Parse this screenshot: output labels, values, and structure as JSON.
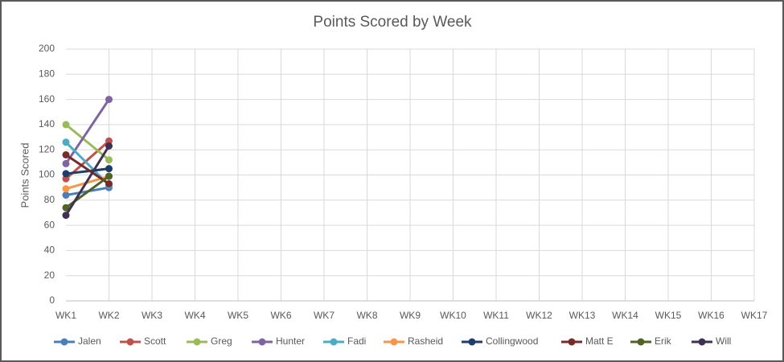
{
  "chart_data": {
    "type": "line",
    "title": "Points Scored by Week",
    "y_label": "Points Scored",
    "categories": [
      "WK1",
      "WK2",
      "WK3",
      "WK4",
      "WK5",
      "WK6",
      "WK7",
      "WK8",
      "WK9",
      "WK10",
      "WK11",
      "WK12",
      "WK13",
      "WK14",
      "WK15",
      "WK16",
      "WK17"
    ],
    "series": [
      {
        "name": "Jalen",
        "color": "#4a7ebb",
        "values": [
          84,
          90,
          null,
          null,
          null,
          null,
          null,
          null,
          null,
          null,
          null,
          null,
          null,
          null,
          null,
          null,
          null
        ]
      },
      {
        "name": "Scott",
        "color": "#c0504d",
        "values": [
          97,
          127,
          null,
          null,
          null,
          null,
          null,
          null,
          null,
          null,
          null,
          null,
          null,
          null,
          null,
          null,
          null
        ]
      },
      {
        "name": "Greg",
        "color": "#9bbb59",
        "values": [
          140,
          112,
          null,
          null,
          null,
          null,
          null,
          null,
          null,
          null,
          null,
          null,
          null,
          null,
          null,
          null,
          null
        ]
      },
      {
        "name": "Hunter",
        "color": "#8064a2",
        "values": [
          109,
          160,
          null,
          null,
          null,
          null,
          null,
          null,
          null,
          null,
          null,
          null,
          null,
          null,
          null,
          null,
          null
        ]
      },
      {
        "name": "Fadi",
        "color": "#4bacc6",
        "values": [
          126,
          92,
          null,
          null,
          null,
          null,
          null,
          null,
          null,
          null,
          null,
          null,
          null,
          null,
          null,
          null,
          null
        ]
      },
      {
        "name": "Rasheid",
        "color": "#f79646",
        "values": [
          89,
          99,
          null,
          null,
          null,
          null,
          null,
          null,
          null,
          null,
          null,
          null,
          null,
          null,
          null,
          null,
          null
        ]
      },
      {
        "name": "Collingwood",
        "color": "#1f3d6b",
        "values": [
          101,
          105,
          null,
          null,
          null,
          null,
          null,
          null,
          null,
          null,
          null,
          null,
          null,
          null,
          null,
          null,
          null
        ]
      },
      {
        "name": "Matt E",
        "color": "#772c2a",
        "values": [
          116,
          93,
          null,
          null,
          null,
          null,
          null,
          null,
          null,
          null,
          null,
          null,
          null,
          null,
          null,
          null,
          null
        ]
      },
      {
        "name": "Erik",
        "color": "#4f6228",
        "values": [
          74,
          99,
          null,
          null,
          null,
          null,
          null,
          null,
          null,
          null,
          null,
          null,
          null,
          null,
          null,
          null,
          null
        ]
      },
      {
        "name": "Will",
        "color": "#3f3151",
        "values": [
          68,
          123,
          null,
          null,
          null,
          null,
          null,
          null,
          null,
          null,
          null,
          null,
          null,
          null,
          null,
          null,
          null
        ]
      }
    ],
    "ylim": [
      0,
      200
    ],
    "yticks": [
      0,
      20,
      40,
      60,
      80,
      100,
      120,
      140,
      160,
      180,
      200
    ],
    "grid": true,
    "legend": "bottom"
  }
}
